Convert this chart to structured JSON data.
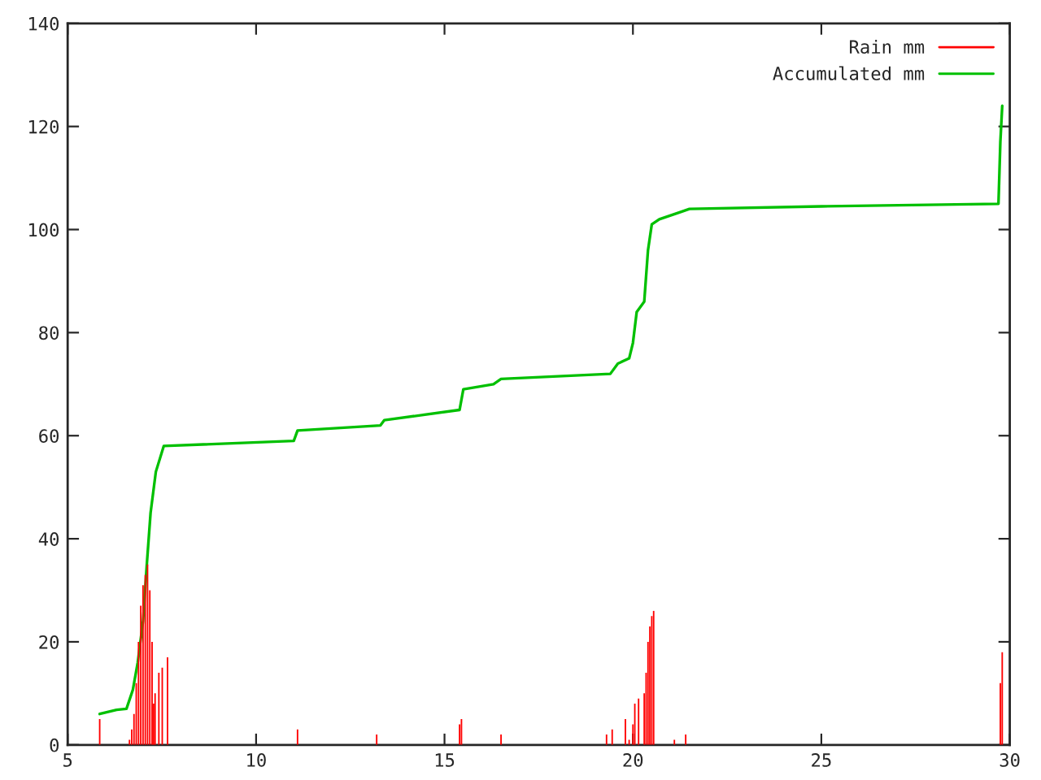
{
  "chart_data": {
    "type": "line",
    "xlim": [
      5,
      30
    ],
    "xticks": [
      5,
      10,
      15,
      20,
      25,
      30
    ],
    "ylim": [
      0,
      140
    ],
    "yticks": [
      0,
      20,
      40,
      60,
      80,
      100,
      120,
      140
    ],
    "grid": false,
    "legend": "top right",
    "series": [
      {
        "name": "Rain mm",
        "type": "bar",
        "color": "#ff0000",
        "x": [
          5.85,
          6.64,
          6.7,
          6.76,
          6.82,
          6.88,
          6.94,
          7.0,
          7.06,
          7.12,
          7.18,
          7.24,
          7.28,
          7.32,
          7.42,
          7.51,
          7.65,
          11.1,
          13.2,
          15.4,
          15.45,
          16.5,
          19.3,
          19.45,
          19.8,
          19.9,
          20.0,
          20.05,
          20.15,
          20.3,
          20.35,
          20.4,
          20.45,
          20.5,
          20.55,
          21.1,
          21.4,
          29.75,
          29.8
        ],
        "values": [
          5,
          1,
          3,
          6,
          12,
          20,
          27,
          31,
          33,
          35,
          30,
          20,
          8,
          10,
          14,
          15,
          17,
          3,
          2,
          4,
          5,
          2,
          2,
          3,
          5,
          1,
          4,
          8,
          9,
          10,
          14,
          20,
          23,
          25,
          26,
          1,
          2,
          12,
          18
        ]
      },
      {
        "name": "Accumulated mm",
        "color": "#00c000",
        "x": [
          5.85,
          6.3,
          6.56,
          6.73,
          6.86,
          7.0,
          7.1,
          7.2,
          7.34,
          7.55,
          11.0,
          11.1,
          13.3,
          13.4,
          15.4,
          15.5,
          16.3,
          16.5,
          19.4,
          19.6,
          19.9,
          20.0,
          20.1,
          20.3,
          20.4,
          20.5,
          20.7,
          21.3,
          21.5,
          25,
          29.7,
          29.75,
          29.8
        ],
        "values": [
          6,
          6.8,
          7,
          10.7,
          16,
          24,
          35,
          45,
          53,
          58,
          59,
          61,
          62,
          63,
          65,
          69,
          70,
          71,
          72,
          74,
          75,
          78,
          84,
          86,
          96,
          101,
          102,
          103.5,
          104,
          104.5,
          105,
          117,
          124
        ]
      }
    ]
  }
}
